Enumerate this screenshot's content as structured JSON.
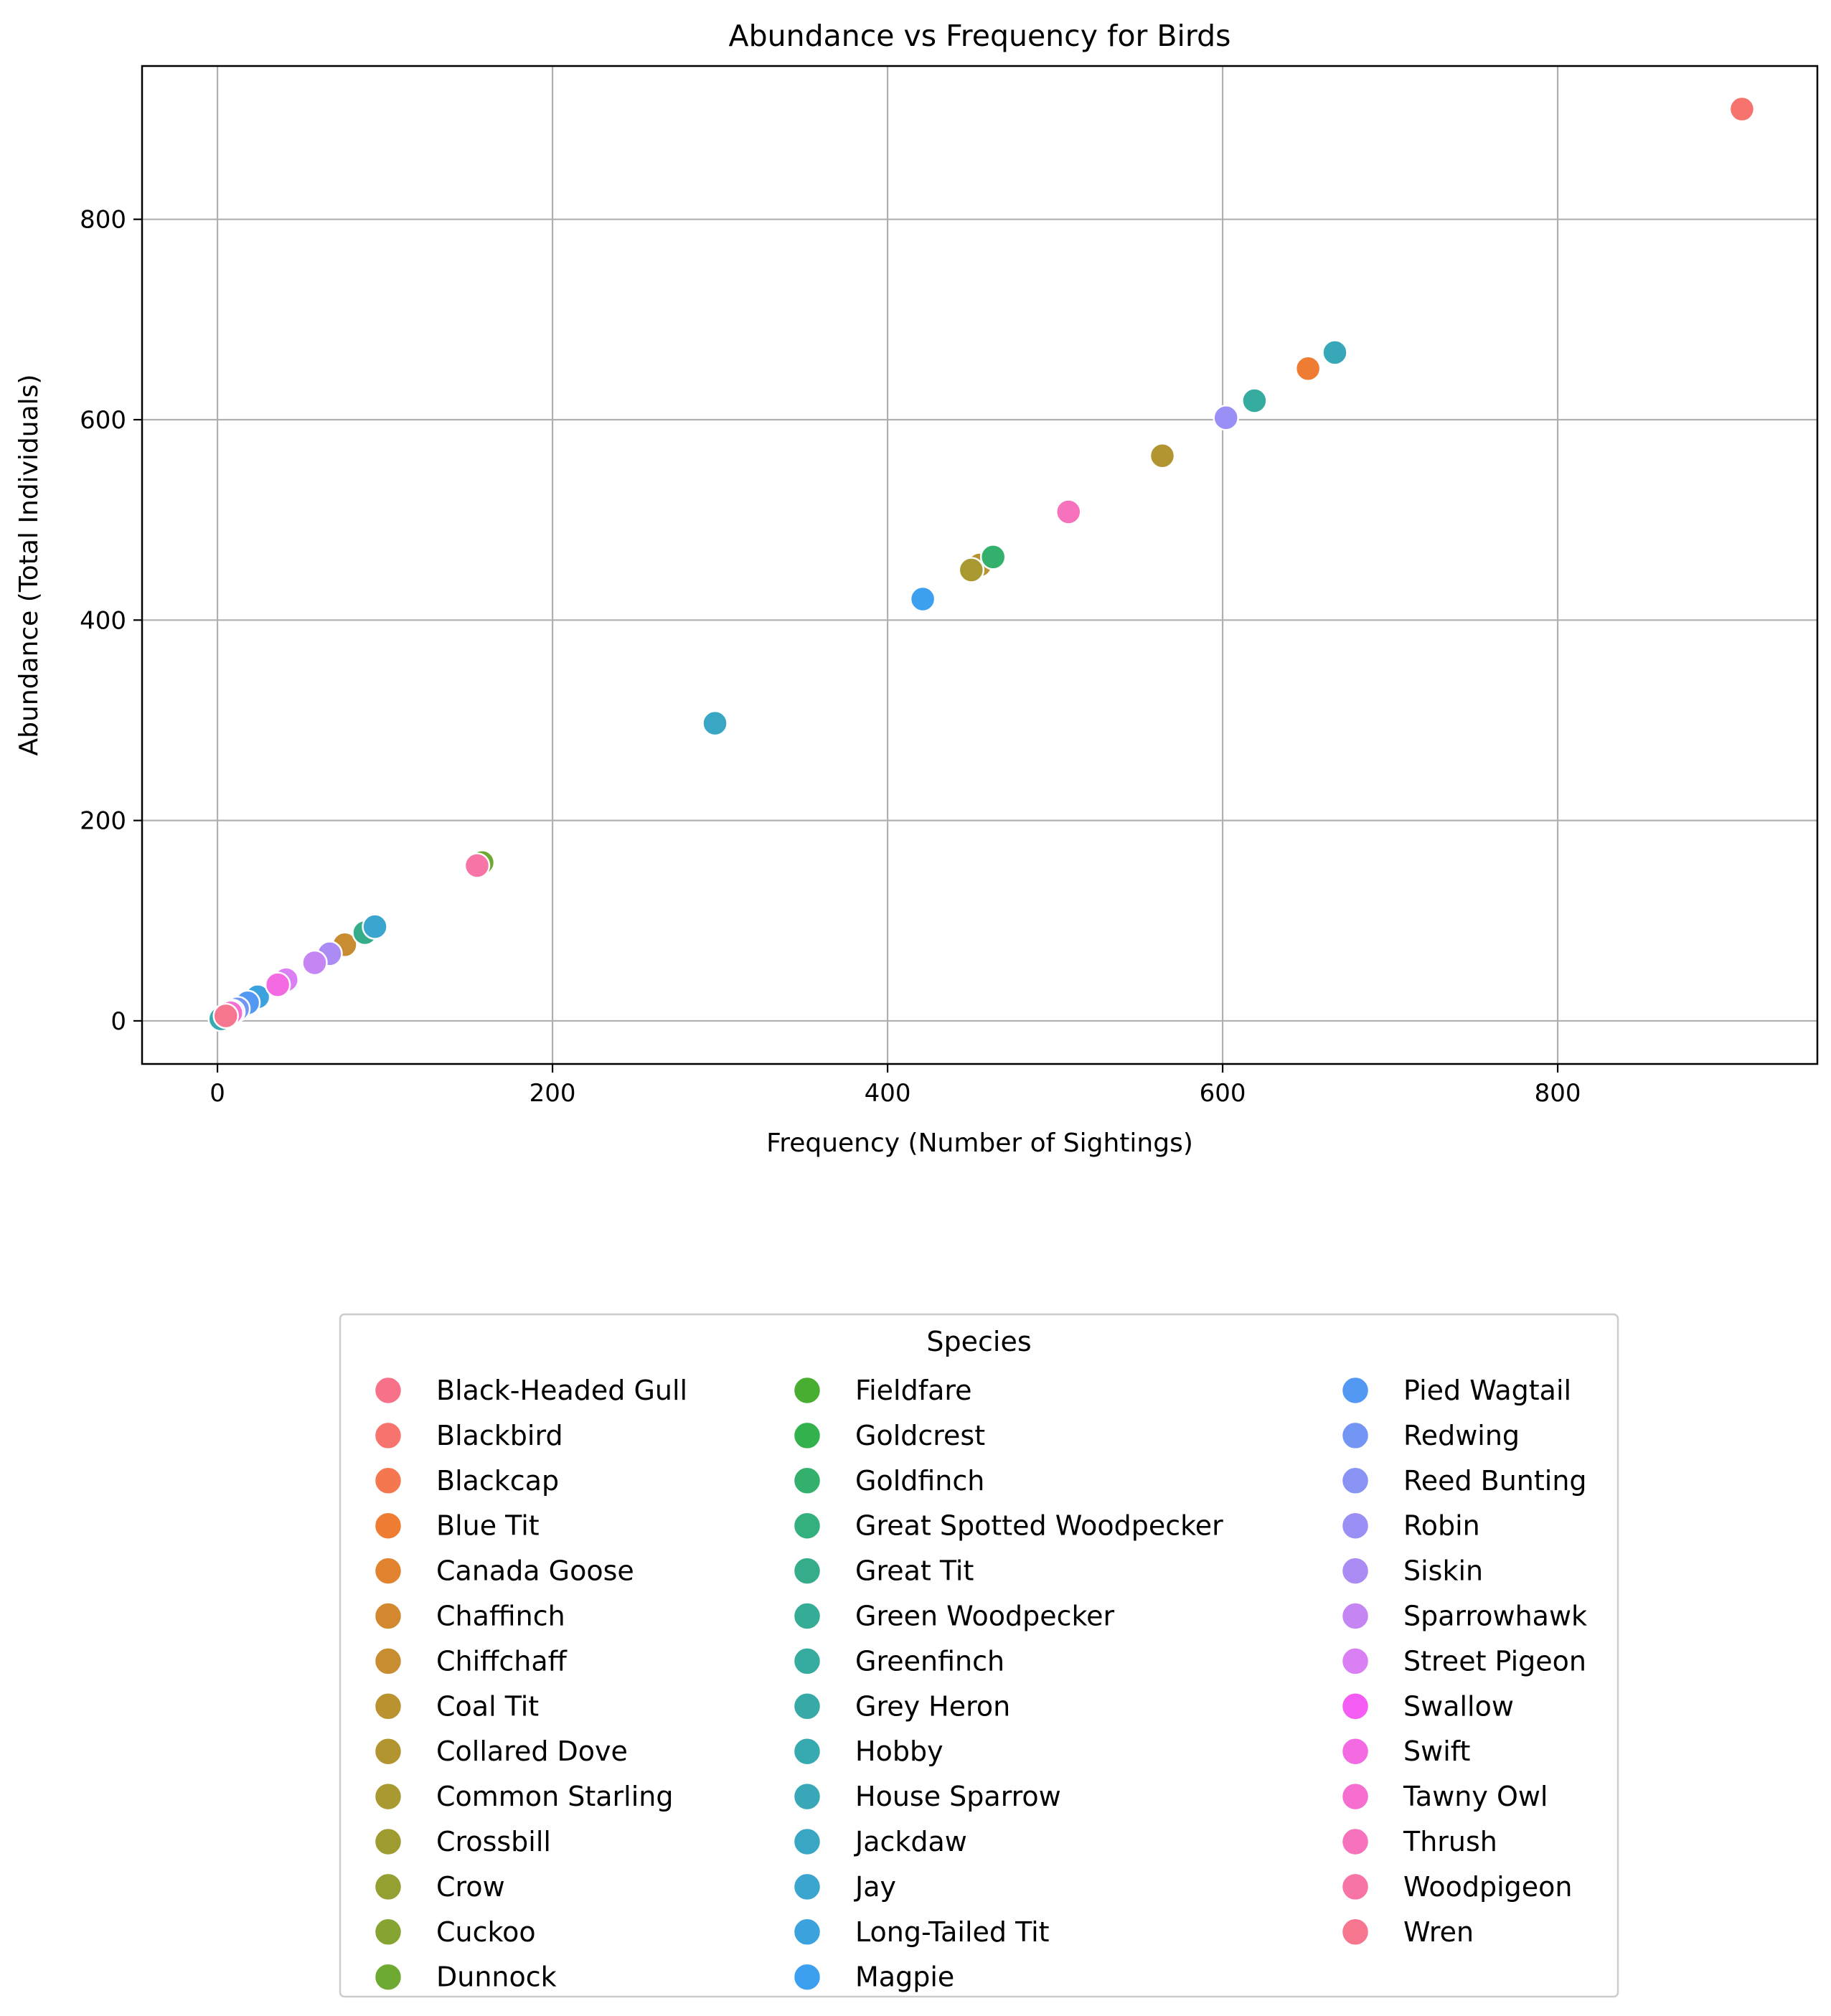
{
  "chart_data": {
    "type": "scatter",
    "title": "Abundance vs Frequency for Birds",
    "xlabel": "Frequency (Number of Sightings)",
    "ylabel": "Abundance (Total Individuals)",
    "xlim": [
      -45,
      955
    ],
    "ylim": [
      -43,
      953
    ],
    "xticks": [
      0,
      200,
      400,
      600,
      800
    ],
    "yticks": [
      0,
      200,
      400,
      600,
      800
    ],
    "grid": true,
    "legend": {
      "title": "Species",
      "placement": "below",
      "columns": 3
    },
    "series": [
      {
        "name": "Black-Headed Gull",
        "color": "#f77189",
        "x": [
          3
        ],
        "y": [
          3
        ]
      },
      {
        "name": "Blackbird",
        "color": "#f7736d",
        "x": [
          910
        ],
        "y": [
          910
        ]
      },
      {
        "name": "Blackcap",
        "color": "#f4774f",
        "x": [
          22
        ],
        "y": [
          22
        ]
      },
      {
        "name": "Blue Tit",
        "color": "#ef7c33",
        "x": [
          651
        ],
        "y": [
          651
        ]
      },
      {
        "name": "Canada Goose",
        "color": "#e1832f",
        "x": [
          14
        ],
        "y": [
          14
        ]
      },
      {
        "name": "Chaffinch",
        "color": "#d3882f",
        "x": [
          8
        ],
        "y": [
          8
        ]
      },
      {
        "name": "Chiffchaff",
        "color": "#c78d30",
        "x": [
          76
        ],
        "y": [
          76
        ]
      },
      {
        "name": "Coal Tit",
        "color": "#bb9230",
        "x": [
          455
        ],
        "y": [
          455
        ]
      },
      {
        "name": "Collared Dove",
        "color": "#b29530",
        "x": [
          564
        ],
        "y": [
          564
        ]
      },
      {
        "name": "Common Starling",
        "color": "#a89931",
        "x": [
          450
        ],
        "y": [
          450
        ]
      },
      {
        "name": "Crossbill",
        "color": "#9e9c31",
        "x": [
          5
        ],
        "y": [
          5
        ]
      },
      {
        "name": "Crow",
        "color": "#94a031",
        "x": [
          157
        ],
        "y": [
          157
        ]
      },
      {
        "name": "Cuckoo",
        "color": "#85a431",
        "x": [
          2
        ],
        "y": [
          2
        ]
      },
      {
        "name": "Dunnock",
        "color": "#6ea931",
        "x": [
          158
        ],
        "y": [
          158
        ]
      },
      {
        "name": "Fieldfare",
        "color": "#48ae31",
        "x": [
          6
        ],
        "y": [
          6
        ]
      },
      {
        "name": "Goldcrest",
        "color": "#32b14d",
        "x": [
          35
        ],
        "y": [
          35
        ]
      },
      {
        "name": "Goldfinch",
        "color": "#33b06b",
        "x": [
          463
        ],
        "y": [
          463
        ]
      },
      {
        "name": "Great Spotted Woodpecker",
        "color": "#34af7e",
        "x": [
          10
        ],
        "y": [
          10
        ]
      },
      {
        "name": "Great Tit",
        "color": "#35ad8b",
        "x": [
          88
        ],
        "y": [
          88
        ]
      },
      {
        "name": "Green Woodpecker",
        "color": "#35ac96",
        "x": [
          4
        ],
        "y": [
          4
        ]
      },
      {
        "name": "Greenfinch",
        "color": "#36ab9f",
        "x": [
          619
        ],
        "y": [
          619
        ]
      },
      {
        "name": "Grey Heron",
        "color": "#37aaa8",
        "x": [
          7
        ],
        "y": [
          7
        ]
      },
      {
        "name": "Hobby",
        "color": "#37a9b0",
        "x": [
          2
        ],
        "y": [
          2
        ]
      },
      {
        "name": "House Sparrow",
        "color": "#38a8b9",
        "x": [
          667
        ],
        "y": [
          667
        ]
      },
      {
        "name": "Jackdaw",
        "color": "#39a7c3",
        "x": [
          297
        ],
        "y": [
          297
        ]
      },
      {
        "name": "Jay",
        "color": "#3aa5cf",
        "x": [
          94
        ],
        "y": [
          94
        ]
      },
      {
        "name": "Long-Tailed Tit",
        "color": "#3ba2de",
        "x": [
          24
        ],
        "y": [
          24
        ]
      },
      {
        "name": "Magpie",
        "color": "#3c9ff0",
        "x": [
          421
        ],
        "y": [
          421
        ]
      },
      {
        "name": "Pied Wagtail",
        "color": "#5399f4",
        "x": [
          18
        ],
        "y": [
          18
        ]
      },
      {
        "name": "Redwing",
        "color": "#7396f4",
        "x": [
          12
        ],
        "y": [
          12
        ]
      },
      {
        "name": "Reed Bunting",
        "color": "#8893f4",
        "x": [
          9
        ],
        "y": [
          9
        ]
      },
      {
        "name": "Robin",
        "color": "#9a8ff4",
        "x": [
          602
        ],
        "y": [
          602
        ]
      },
      {
        "name": "Siskin",
        "color": "#ab8cf4",
        "x": [
          67
        ],
        "y": [
          67
        ]
      },
      {
        "name": "Sparrowhawk",
        "color": "#c586f4",
        "x": [
          58
        ],
        "y": [
          58
        ]
      },
      {
        "name": "Street Pigeon",
        "color": "#da80f4",
        "x": [
          41
        ],
        "y": [
          41
        ]
      },
      {
        "name": "Swallow",
        "color": "#f55cf4",
        "x": [
          6
        ],
        "y": [
          6
        ]
      },
      {
        "name": "Swift",
        "color": "#f46ae3",
        "x": [
          36
        ],
        "y": [
          36
        ]
      },
      {
        "name": "Tawny Owl",
        "color": "#f66ed0",
        "x": [
          8
        ],
        "y": [
          8
        ]
      },
      {
        "name": "Thrush",
        "color": "#f672bc",
        "x": [
          508
        ],
        "y": [
          508
        ]
      },
      {
        "name": "Woodpigeon",
        "color": "#f674a6",
        "x": [
          155
        ],
        "y": [
          155
        ]
      },
      {
        "name": "Wren",
        "color": "#f6768f",
        "x": [
          5
        ],
        "y": [
          5
        ]
      }
    ]
  }
}
